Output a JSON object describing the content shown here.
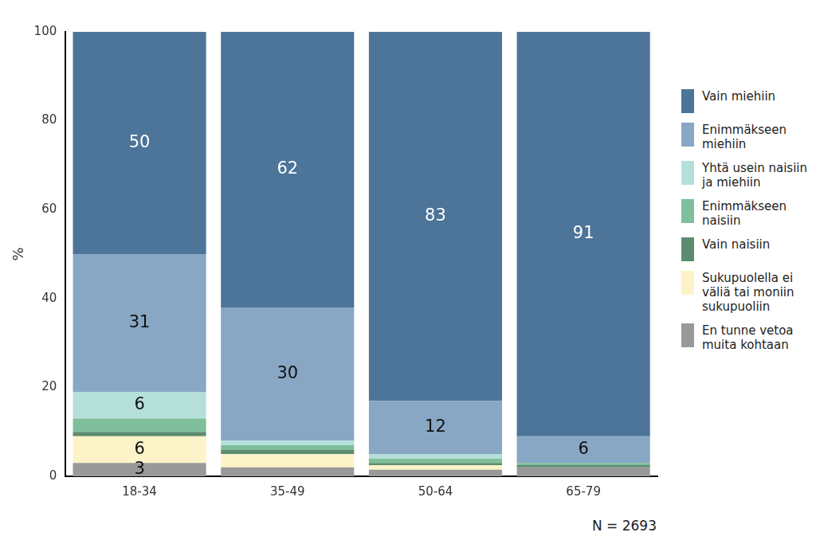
{
  "chart_data": {
    "type": "bar",
    "stacked": true,
    "data_labels": true,
    "legend": "right",
    "grid": false,
    "y_label": "%",
    "annotation": "N = 2693",
    "categories": [
      "18-34",
      "35-49",
      "50-64",
      "65-79"
    ],
    "ylim": [
      0,
      100
    ],
    "yticks": [
      0,
      20,
      40,
      60,
      80,
      100
    ],
    "series": [
      {
        "name": "Vain miehiin",
        "color": "#4d7499",
        "values": [
          50,
          62,
          83,
          91
        ],
        "value_labels": [
          "50",
          "62",
          "83",
          "91"
        ]
      },
      {
        "name": "Enimmäkseen miehiin",
        "color": "#87a7c4",
        "values": [
          31,
          30,
          12,
          6
        ],
        "value_labels": [
          "31",
          "30",
          "12",
          "6"
        ]
      },
      {
        "name": "Yhtä usein naisiin ja miehiin",
        "color": "#b5e0da",
        "values": [
          6,
          1,
          1,
          0
        ],
        "value_labels": [
          "6",
          null,
          null,
          null
        ]
      },
      {
        "name": "Enimmäkseen naisiin",
        "color": "#7fbf9b",
        "values": [
          3,
          1,
          1,
          0.5
        ],
        "value_labels": [
          null,
          null,
          null,
          null
        ]
      },
      {
        "name": "Vain naisiin",
        "color": "#5c8c70",
        "values": [
          1,
          1,
          0.5,
          0.5
        ],
        "value_labels": [
          null,
          null,
          null,
          null
        ]
      },
      {
        "name": "Sukupuolella ei väliä tai moniin sukupuoliin",
        "color": "#fdf3c8",
        "values": [
          6,
          3,
          1,
          0
        ],
        "value_labels": [
          "6",
          null,
          null,
          null
        ]
      },
      {
        "name": "En tunne vetoa muita kohtaan",
        "color": "#999999",
        "values": [
          3,
          2,
          1.5,
          2
        ],
        "value_labels": [
          "3",
          null,
          null,
          null
        ]
      }
    ]
  }
}
